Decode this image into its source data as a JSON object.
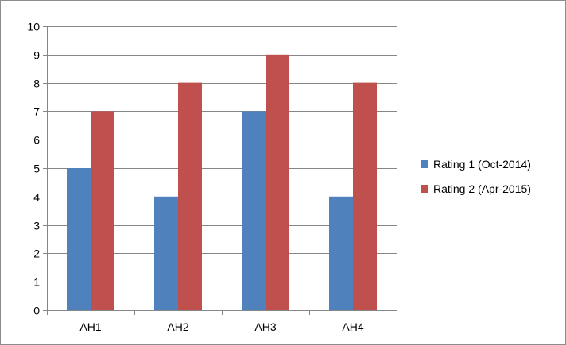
{
  "chart_data": {
    "type": "bar",
    "categories": [
      "AH1",
      "AH2",
      "AH3",
      "AH4"
    ],
    "series": [
      {
        "name": "Rating 1 (Oct-2014)",
        "values": [
          5,
          4,
          7,
          4
        ],
        "color": "#4f81bd"
      },
      {
        "name": "Rating 2 (Apr-2015)",
        "values": [
          7,
          8,
          9,
          8
        ],
        "color": "#c0504d"
      }
    ],
    "ylim": [
      0,
      10
    ],
    "yticks": [
      0,
      1,
      2,
      3,
      4,
      5,
      6,
      7,
      8,
      9,
      10
    ],
    "grid": true,
    "legend_position": "right"
  }
}
